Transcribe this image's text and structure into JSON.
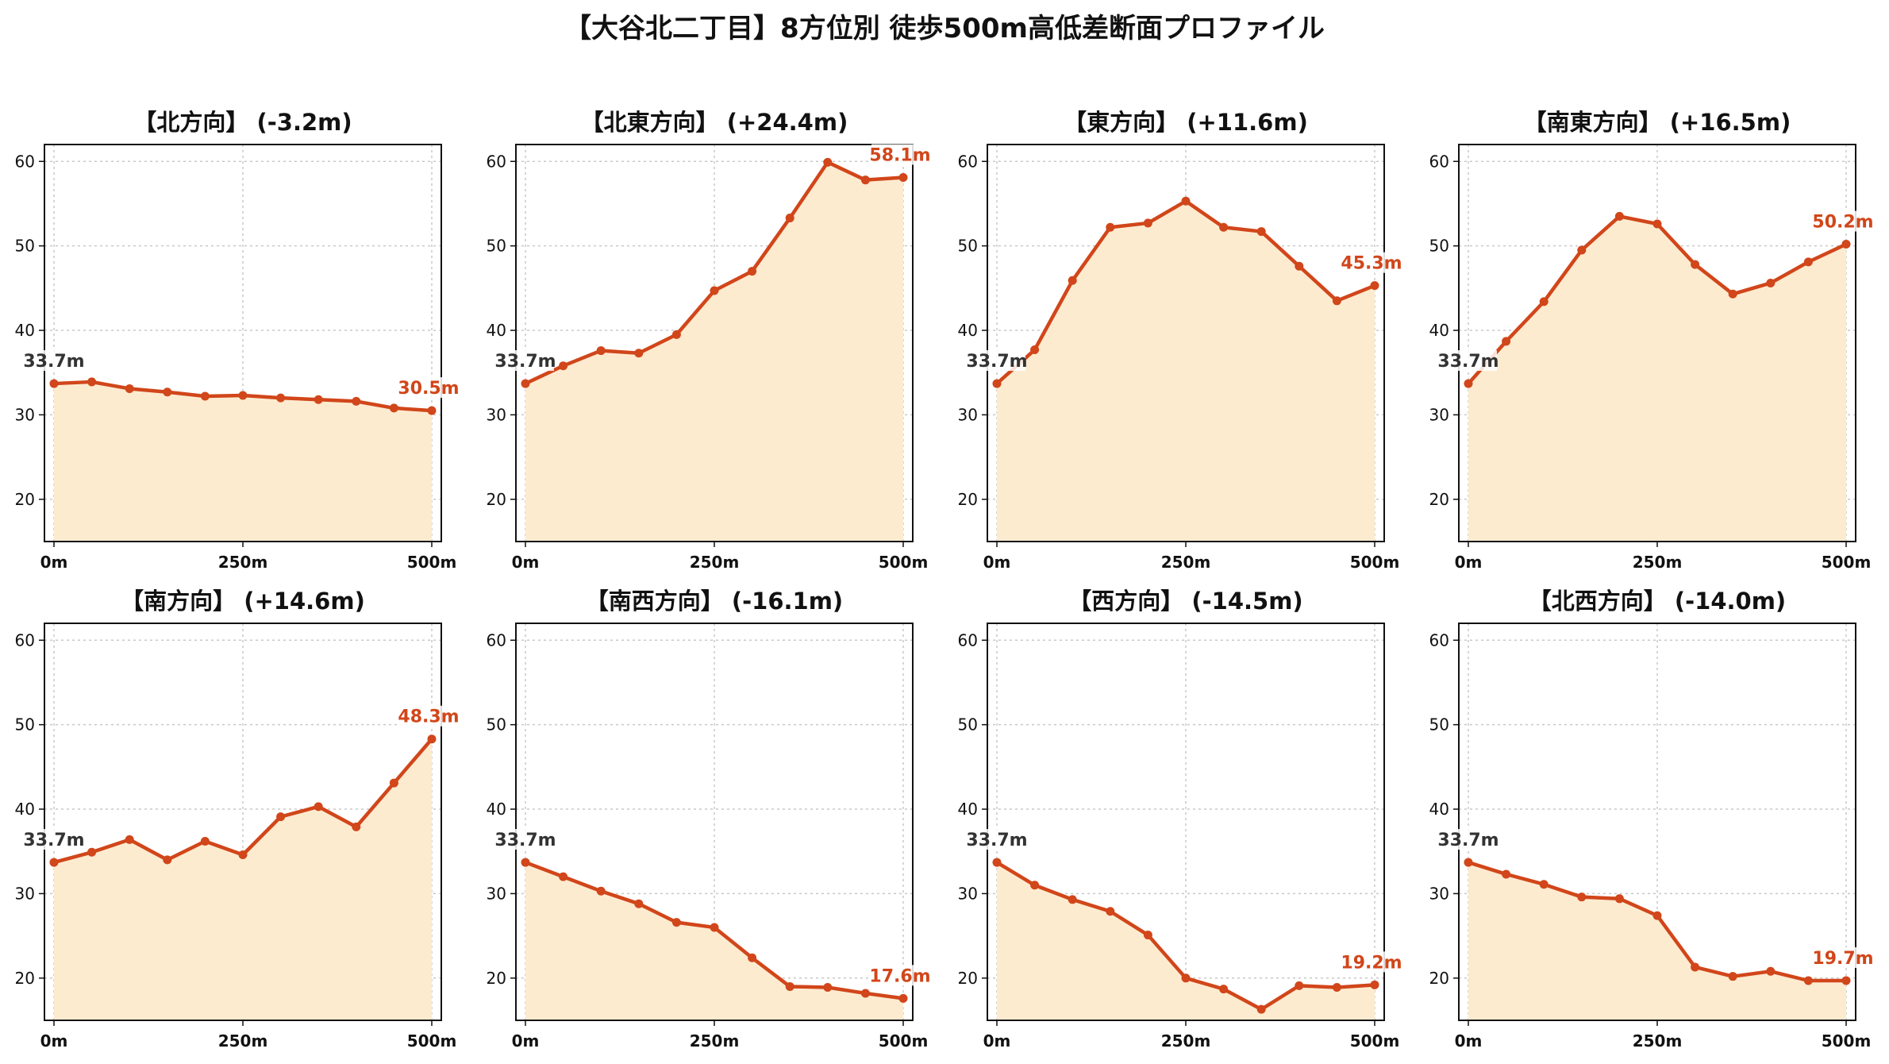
{
  "title": "【大谷北二丁目】8方位別 徒歩500m高低差断面プロファイル",
  "colors": {
    "line": "#d1461a",
    "fill": "#fdebd0",
    "start_label": "#333333",
    "end_label": "#d1461a"
  },
  "chart_data": [
    {
      "type": "area",
      "title": "【北方向】 (-3.2m)",
      "x": [
        0,
        50,
        100,
        150,
        200,
        250,
        300,
        350,
        400,
        450,
        500
      ],
      "values": [
        33.7,
        33.9,
        33.1,
        32.7,
        32.2,
        32.3,
        32.0,
        31.8,
        31.6,
        30.8,
        30.5
      ],
      "xticks": [
        "0m",
        "250m",
        "500m"
      ],
      "yticks": [
        "20",
        "30",
        "40",
        "50",
        "60"
      ],
      "ylim": [
        15,
        62
      ],
      "xlim": [
        0,
        500
      ],
      "start_label": "33.7m",
      "end_label": "30.5m",
      "grid": true
    },
    {
      "type": "area",
      "title": "【北東方向】 (+24.4m)",
      "x": [
        0,
        50,
        100,
        150,
        200,
        250,
        300,
        350,
        400,
        450,
        500
      ],
      "values": [
        33.7,
        35.8,
        37.6,
        37.3,
        39.5,
        44.7,
        47.0,
        53.3,
        59.9,
        57.8,
        58.1
      ],
      "xticks": [
        "0m",
        "250m",
        "500m"
      ],
      "yticks": [
        "20",
        "30",
        "40",
        "50",
        "60"
      ],
      "ylim": [
        15,
        62
      ],
      "xlim": [
        0,
        500
      ],
      "start_label": "33.7m",
      "end_label": "58.1m",
      "grid": true
    },
    {
      "type": "area",
      "title": "【東方向】 (+11.6m)",
      "x": [
        0,
        50,
        100,
        150,
        200,
        250,
        300,
        350,
        400,
        450,
        500
      ],
      "values": [
        33.7,
        37.7,
        45.9,
        52.2,
        52.7,
        55.3,
        52.2,
        51.7,
        47.6,
        43.5,
        45.3
      ],
      "xticks": [
        "0m",
        "250m",
        "500m"
      ],
      "yticks": [
        "20",
        "30",
        "40",
        "50",
        "60"
      ],
      "ylim": [
        15,
        62
      ],
      "xlim": [
        0,
        500
      ],
      "start_label": "33.7m",
      "end_label": "45.3m",
      "grid": true
    },
    {
      "type": "area",
      "title": "【南東方向】 (+16.5m)",
      "x": [
        0,
        50,
        100,
        150,
        200,
        250,
        300,
        350,
        400,
        450,
        500
      ],
      "values": [
        33.7,
        38.7,
        43.4,
        49.5,
        53.5,
        52.6,
        47.8,
        44.3,
        45.6,
        48.1,
        50.2
      ],
      "xticks": [
        "0m",
        "250m",
        "500m"
      ],
      "yticks": [
        "20",
        "30",
        "40",
        "50",
        "60"
      ],
      "ylim": [
        15,
        62
      ],
      "xlim": [
        0,
        500
      ],
      "start_label": "33.7m",
      "end_label": "50.2m",
      "grid": true
    },
    {
      "type": "area",
      "title": "【南方向】 (+14.6m)",
      "x": [
        0,
        50,
        100,
        150,
        200,
        250,
        300,
        350,
        400,
        450,
        500
      ],
      "values": [
        33.7,
        34.9,
        36.4,
        34.0,
        36.2,
        34.6,
        39.1,
        40.3,
        37.9,
        43.1,
        48.3
      ],
      "xticks": [
        "0m",
        "250m",
        "500m"
      ],
      "yticks": [
        "20",
        "30",
        "40",
        "50",
        "60"
      ],
      "ylim": [
        15,
        62
      ],
      "xlim": [
        0,
        500
      ],
      "start_label": "33.7m",
      "end_label": "48.3m",
      "grid": true
    },
    {
      "type": "area",
      "title": "【南西方向】 (-16.1m)",
      "x": [
        0,
        50,
        100,
        150,
        200,
        250,
        300,
        350,
        400,
        450,
        500
      ],
      "values": [
        33.7,
        32.0,
        30.3,
        28.8,
        26.6,
        26.0,
        22.4,
        19.0,
        18.9,
        18.2,
        17.6
      ],
      "xticks": [
        "0m",
        "250m",
        "500m"
      ],
      "yticks": [
        "20",
        "30",
        "40",
        "50",
        "60"
      ],
      "ylim": [
        15,
        62
      ],
      "xlim": [
        0,
        500
      ],
      "start_label": "33.7m",
      "end_label": "17.6m",
      "grid": true
    },
    {
      "type": "area",
      "title": "【西方向】 (-14.5m)",
      "x": [
        0,
        50,
        100,
        150,
        200,
        250,
        300,
        350,
        400,
        450,
        500
      ],
      "values": [
        33.7,
        31.0,
        29.3,
        27.9,
        25.1,
        20.0,
        18.7,
        16.3,
        19.1,
        18.9,
        19.2
      ],
      "xticks": [
        "0m",
        "250m",
        "500m"
      ],
      "yticks": [
        "20",
        "30",
        "40",
        "50",
        "60"
      ],
      "ylim": [
        15,
        62
      ],
      "xlim": [
        0,
        500
      ],
      "start_label": "33.7m",
      "end_label": "19.2m",
      "grid": true
    },
    {
      "type": "area",
      "title": "【北西方向】 (-14.0m)",
      "x": [
        0,
        50,
        100,
        150,
        200,
        250,
        300,
        350,
        400,
        450,
        500
      ],
      "values": [
        33.7,
        32.3,
        31.1,
        29.6,
        29.4,
        27.4,
        21.3,
        20.2,
        20.8,
        19.7,
        19.7
      ],
      "xticks": [
        "0m",
        "250m",
        "500m"
      ],
      "yticks": [
        "20",
        "30",
        "40",
        "50",
        "60"
      ],
      "ylim": [
        15,
        62
      ],
      "xlim": [
        0,
        500
      ],
      "start_label": "33.7m",
      "end_label": "19.7m",
      "grid": true
    }
  ]
}
